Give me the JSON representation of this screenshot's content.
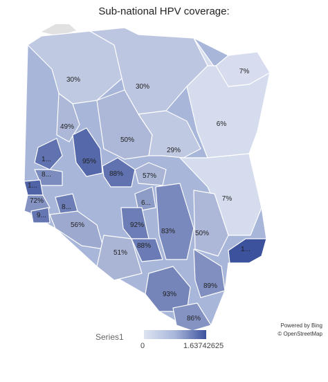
{
  "title": "Sub-national HPV coverage:",
  "colors": {
    "low": "#dde3f1",
    "mid": "#a8b6da",
    "high": "#3d529d",
    "top": "#2c4187",
    "border": "#ffffff",
    "unmapped": "#e1e1e1"
  },
  "region_labels": [
    "30%",
    "30%",
    "7%",
    "6%",
    "49%",
    "50%",
    "29%",
    "1...",
    "95%",
    "8...",
    "88%",
    "57%",
    "1...",
    "72%",
    "8...",
    "6...",
    "7%",
    "9...",
    "56%",
    "92%",
    "83%",
    "50%",
    "88%",
    "1...",
    "51%",
    "89%",
    "93%",
    "86%"
  ],
  "attribution": {
    "line1": "Powered by Bing",
    "line2": "© OpenStreetMap"
  },
  "legend": {
    "series_label": "Series1",
    "min_label": "0",
    "max_label": "1.63742625"
  }
}
